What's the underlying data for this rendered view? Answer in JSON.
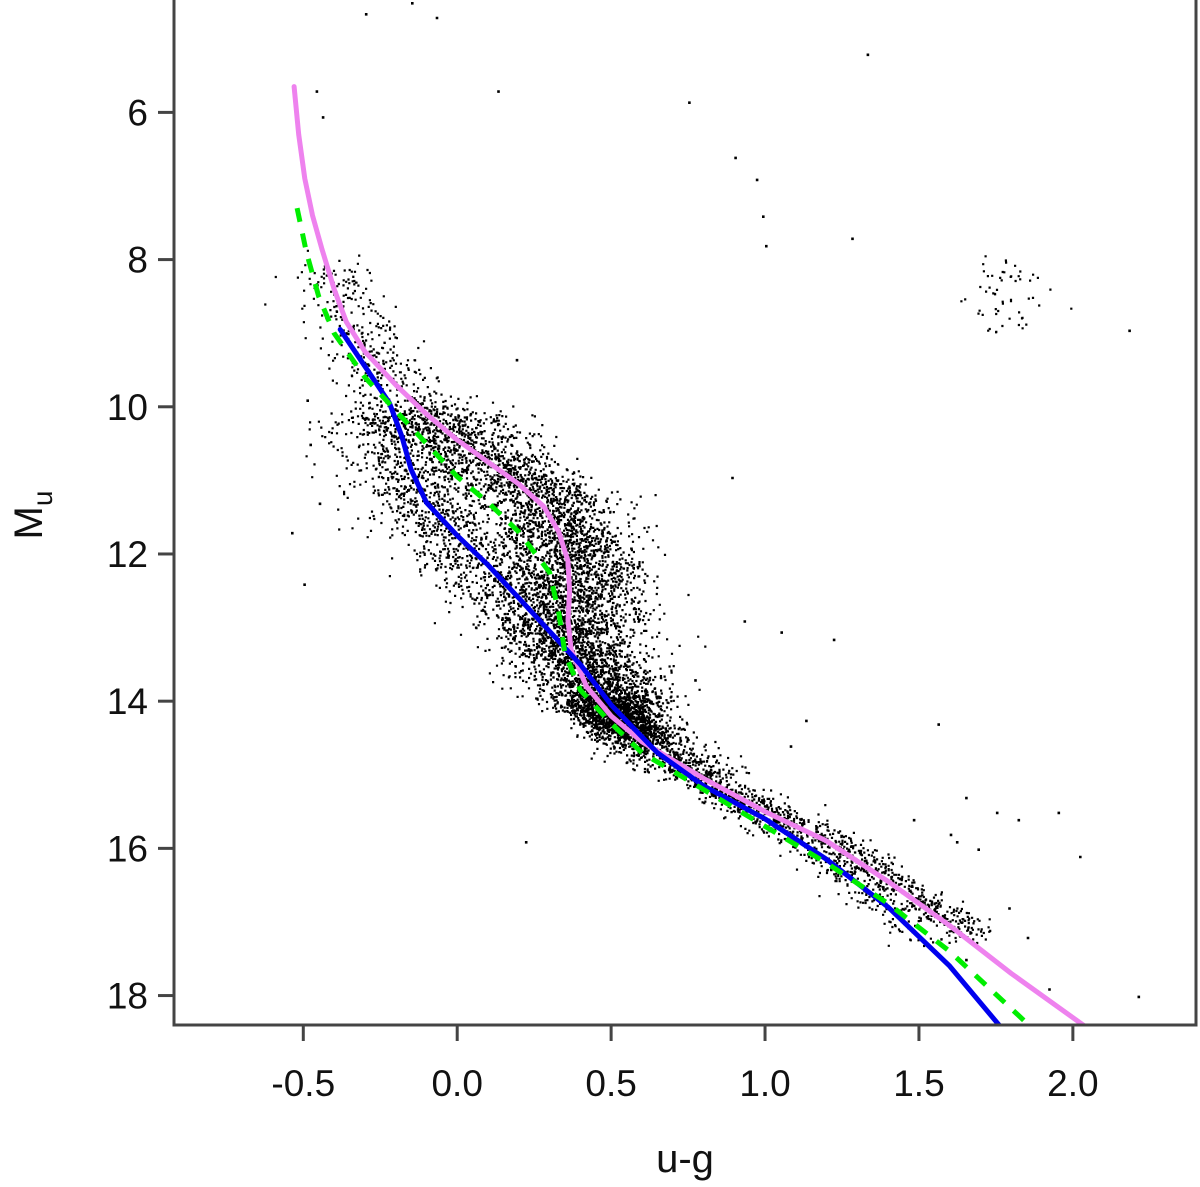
{
  "chart_data": {
    "type": "scatter",
    "title": "",
    "xlabel": "u-g",
    "ylabel_main": "M",
    "ylabel_sub": "u",
    "xlim": [
      -0.92,
      2.4
    ],
    "ylim": [
      18.4,
      4.5
    ],
    "y_inverted": true,
    "grid": false,
    "x_ticks": [
      "-0.5",
      "0.0",
      "0.5",
      "1.0",
      "1.5",
      "2.0"
    ],
    "y_ticks": [
      "6",
      "8",
      "10",
      "12",
      "14",
      "16",
      "18"
    ],
    "point_color": "#000000",
    "point_count_approx": 9000,
    "outliers": [
      [
        -0.3,
        4.65
      ],
      [
        -0.15,
        4.5
      ],
      [
        -0.07,
        4.7
      ],
      [
        0.18,
        4.45
      ],
      [
        1.33,
        5.2
      ],
      [
        0.13,
        5.7
      ],
      [
        0.75,
        5.85
      ],
      [
        0.9,
        6.6
      ],
      [
        0.97,
        6.9
      ],
      [
        0.99,
        7.4
      ],
      [
        1.0,
        7.8
      ],
      [
        1.28,
        7.7
      ],
      [
        2.18,
        8.95
      ],
      [
        0.89,
        10.95
      ],
      [
        0.93,
        12.9
      ],
      [
        1.05,
        13.05
      ],
      [
        1.22,
        13.15
      ],
      [
        0.77,
        13.7
      ],
      [
        1.08,
        14.6
      ],
      [
        1.13,
        14.25
      ],
      [
        1.56,
        14.3
      ],
      [
        1.65,
        15.3
      ],
      [
        1.75,
        15.5
      ],
      [
        1.82,
        15.6
      ],
      [
        1.95,
        15.5
      ],
      [
        2.02,
        16.1
      ],
      [
        1.6,
        15.8
      ],
      [
        1.69,
        16.0
      ],
      [
        1.85,
        17.2
      ],
      [
        1.79,
        16.8
      ],
      [
        1.65,
        17.5
      ],
      [
        2.21,
        18.0
      ],
      [
        1.92,
        17.9
      ],
      [
        1.62,
        15.9
      ],
      [
        0.22,
        15.9
      ],
      [
        -0.54,
        11.7
      ],
      [
        -0.5,
        12.4
      ],
      [
        -0.48,
        10.5
      ],
      [
        -0.45,
        11.3
      ],
      [
        -0.49,
        9.9
      ],
      [
        -0.46,
        5.7
      ],
      [
        -0.44,
        6.05
      ],
      [
        0.19,
        9.35
      ],
      [
        1.48,
        15.6
      ],
      [
        1.36,
        16.3
      ]
    ],
    "series": [
      {
        "name": "",
        "color": "#ee82ee",
        "style": "solid",
        "points": [
          [
            -0.53,
            5.65
          ],
          [
            -0.515,
            6.3
          ],
          [
            -0.495,
            6.9
          ],
          [
            -0.47,
            7.4
          ],
          [
            -0.44,
            7.85
          ],
          [
            -0.4,
            8.4
          ],
          [
            -0.36,
            8.85
          ],
          [
            -0.3,
            9.25
          ],
          [
            -0.2,
            9.7
          ],
          [
            -0.1,
            10.1
          ],
          [
            0.0,
            10.45
          ],
          [
            0.1,
            10.75
          ],
          [
            0.2,
            11.05
          ],
          [
            0.28,
            11.35
          ],
          [
            0.33,
            11.7
          ],
          [
            0.36,
            12.1
          ],
          [
            0.365,
            12.5
          ],
          [
            0.36,
            12.9
          ],
          [
            0.37,
            13.3
          ],
          [
            0.42,
            13.8
          ],
          [
            0.5,
            14.2
          ],
          [
            0.6,
            14.55
          ],
          [
            0.8,
            15.05
          ],
          [
            1.0,
            15.5
          ],
          [
            1.2,
            15.9
          ],
          [
            1.4,
            16.45
          ],
          [
            1.6,
            17.05
          ],
          [
            1.8,
            17.7
          ],
          [
            2.05,
            18.45
          ]
        ]
      },
      {
        "name": "",
        "color": "#0000ee",
        "style": "solid",
        "points": [
          [
            -0.38,
            8.95
          ],
          [
            -0.3,
            9.45
          ],
          [
            -0.22,
            9.95
          ],
          [
            -0.18,
            10.4
          ],
          [
            -0.15,
            10.85
          ],
          [
            -0.1,
            11.3
          ],
          [
            0.0,
            11.75
          ],
          [
            0.1,
            12.15
          ],
          [
            0.2,
            12.6
          ],
          [
            0.3,
            13.05
          ],
          [
            0.4,
            13.5
          ],
          [
            0.5,
            14.05
          ],
          [
            0.65,
            14.7
          ],
          [
            0.8,
            15.15
          ],
          [
            1.0,
            15.6
          ],
          [
            1.2,
            16.15
          ],
          [
            1.4,
            16.8
          ],
          [
            1.6,
            17.6
          ],
          [
            1.77,
            18.45
          ]
        ]
      },
      {
        "name": "",
        "color": "#00ee00",
        "style": "dashed",
        "points": [
          [
            -0.52,
            7.3
          ],
          [
            -0.49,
            7.9
          ],
          [
            -0.45,
            8.5
          ],
          [
            -0.4,
            9.0
          ],
          [
            -0.3,
            9.6
          ],
          [
            -0.2,
            10.05
          ],
          [
            -0.1,
            10.5
          ],
          [
            0.0,
            10.95
          ],
          [
            0.1,
            11.3
          ],
          [
            0.2,
            11.7
          ],
          [
            0.3,
            12.25
          ],
          [
            0.33,
            12.8
          ],
          [
            0.35,
            13.35
          ],
          [
            0.4,
            13.85
          ],
          [
            0.5,
            14.3
          ],
          [
            0.6,
            14.7
          ],
          [
            0.8,
            15.2
          ],
          [
            1.0,
            15.7
          ],
          [
            1.2,
            16.2
          ],
          [
            1.4,
            16.75
          ],
          [
            1.6,
            17.4
          ],
          [
            1.87,
            18.45
          ]
        ]
      }
    ]
  }
}
